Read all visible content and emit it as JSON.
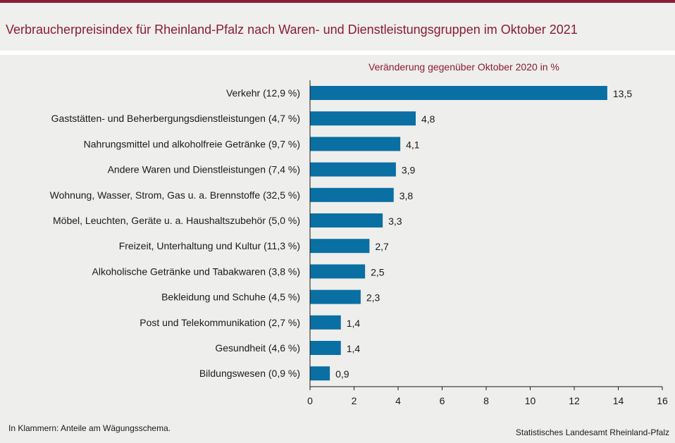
{
  "title": "Verbraucherpreisindex für Rheinland-Pfalz nach Waren- und Dienstleistungsgruppen im Oktober 2021",
  "footnote": "In Klammern: Anteile am Wägungsschema.",
  "source": "Statistisches Landesamt Rheinland-Pfalz",
  "colors": {
    "accent": "#8c1b35",
    "bar": "#0a6fa3",
    "background": "#eeeeec"
  },
  "chart_data": {
    "type": "bar",
    "orientation": "horizontal",
    "title": "Verbraucherpreisindex für Rheinland-Pfalz nach Waren- und Dienstleistungsgruppen im Oktober 2021",
    "subtitle": "Veränderung gegenüber Oktober 2020 in %",
    "categories": [
      "Verkehr (12,9 %)",
      "Gaststätten- und Beherbergungsdienstleistungen (4,7 %)",
      "Nahrungsmittel und alkoholfreie Getränke (9,7 %)",
      "Andere Waren und Dienstleistungen (7,4 %)",
      "Wohnung, Wasser, Strom, Gas u. a. Brennstoffe (32,5 %)",
      "Möbel, Leuchten, Geräte u. a. Haushaltszubehör  (5,0 %)",
      "Freizeit, Unterhaltung und Kultur (11,3 %)",
      "Alkoholische Getränke und Tabakwaren (3,8 %)",
      "Bekleidung und Schuhe (4,5 %)",
      "Post und Telekommunikation (2,7 %)",
      "Gesundheit (4,6 %)",
      "Bildungswesen (0,9 %)"
    ],
    "values": [
      13.5,
      4.8,
      4.1,
      3.9,
      3.8,
      3.3,
      2.7,
      2.5,
      2.3,
      1.4,
      1.4,
      0.9
    ],
    "value_labels": [
      "13,5",
      "4,8",
      "4,1",
      "3,9",
      "3,8",
      "3,3",
      "2,7",
      "2,5",
      "2,3",
      "1,4",
      "1,4",
      "0,9"
    ],
    "xlim": [
      0,
      16
    ],
    "xticks": [
      "0",
      "2",
      "4",
      "6",
      "8",
      "10",
      "12",
      "14",
      "16"
    ],
    "tick_values": [
      0,
      2,
      4,
      6,
      8,
      10,
      12,
      14,
      16
    ],
    "grid": false
  }
}
